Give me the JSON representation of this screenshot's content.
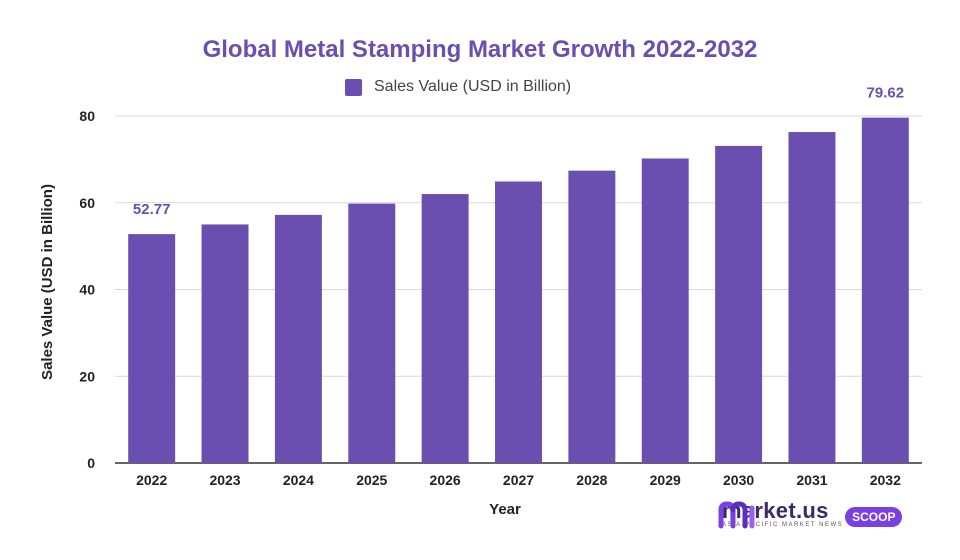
{
  "chart_data": {
    "type": "bar",
    "title": "Global Metal Stamping Market Growth 2022-2032",
    "xlabel": "Year",
    "ylabel": "Sales Value (USD in Billion)",
    "categories": [
      "2022",
      "2023",
      "2024",
      "2025",
      "2026",
      "2027",
      "2028",
      "2029",
      "2030",
      "2031",
      "2032"
    ],
    "series": [
      {
        "name": "Sales Value (USD in Billion)",
        "values": [
          52.77,
          55.0,
          57.2,
          59.8,
          62.0,
          64.9,
          67.4,
          70.2,
          73.1,
          76.3,
          79.62
        ]
      }
    ],
    "ylim": [
      0,
      80
    ],
    "yticks": [
      "0",
      "20",
      "40",
      "60",
      "80"
    ],
    "data_labels": {
      "2022": "52.77",
      "2032": "79.62"
    },
    "legend_position": "top-center",
    "grid": true,
    "colors": {
      "bar": "#6a4fb1",
      "title": "#6a4fb1",
      "grid": "#d9d9d9",
      "axis": "#333333"
    }
  },
  "brand": {
    "name": "market.us",
    "tagline": "ASIA-PACIFIC MARKET NEWS",
    "badge": "SCOOP"
  }
}
